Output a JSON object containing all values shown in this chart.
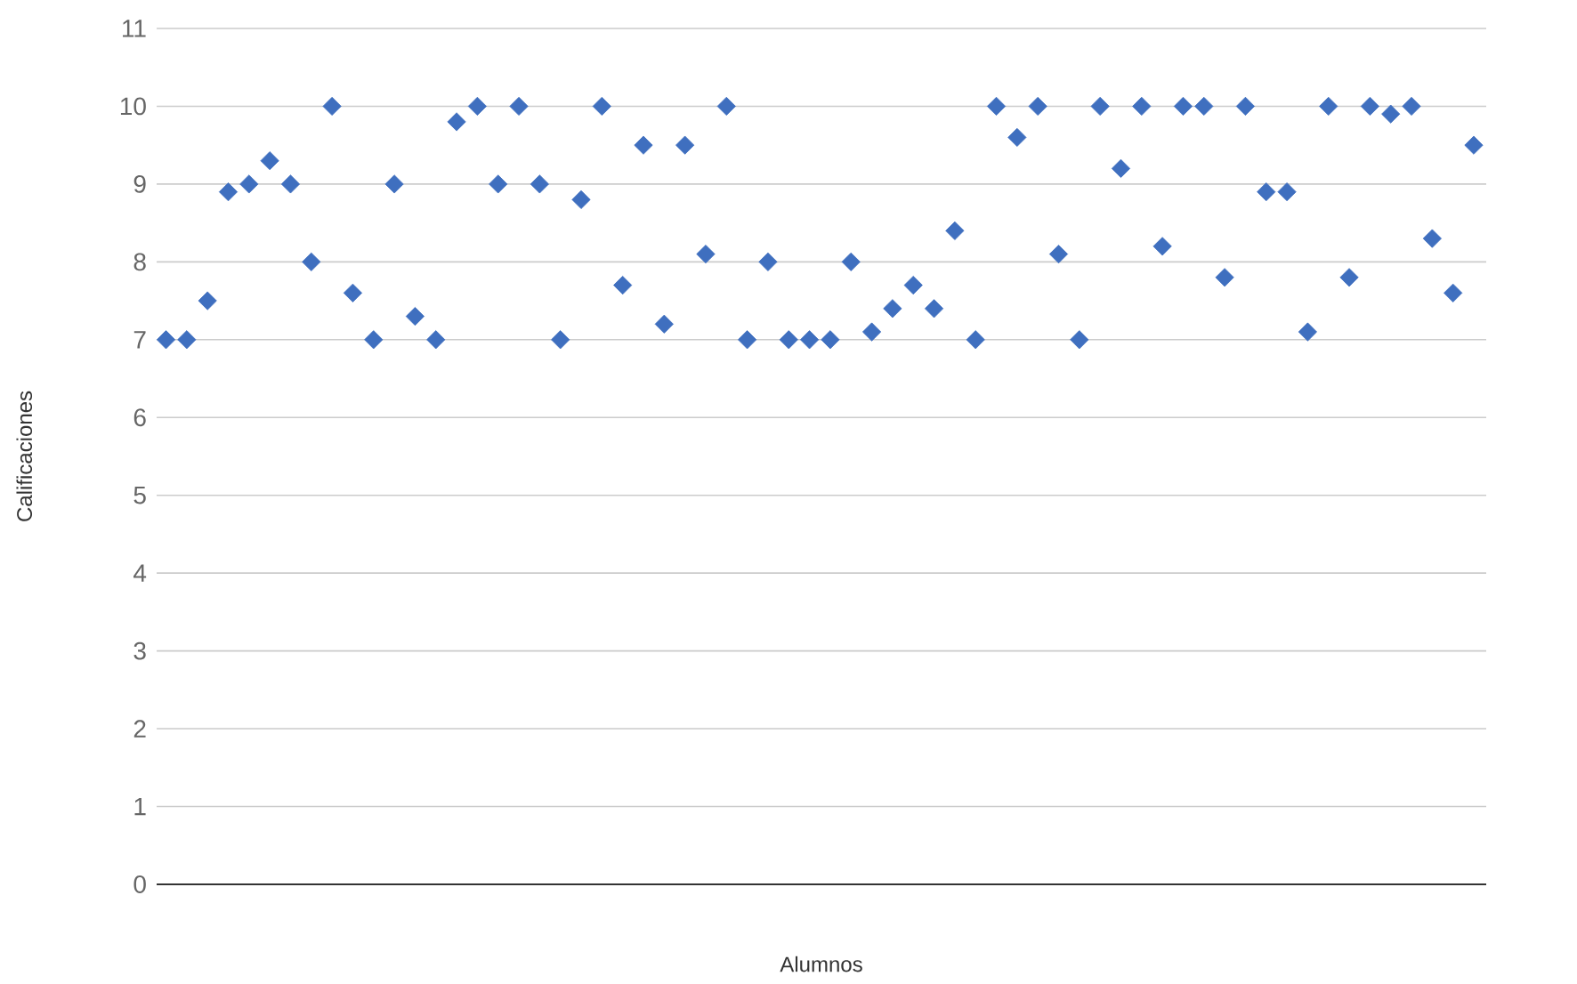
{
  "chart_data": {
    "type": "scatter",
    "xlabel": "Alumnos",
    "ylabel": "Calificaciones",
    "categories": [
      null,
      null,
      null,
      null,
      null,
      null,
      null,
      null,
      null,
      null,
      null,
      null,
      null,
      null,
      null,
      null,
      null,
      null,
      null,
      null,
      null,
      null,
      null,
      null,
      null,
      null,
      null,
      null,
      null,
      null,
      null,
      null,
      null,
      null,
      null,
      null,
      null,
      null,
      null,
      null,
      null,
      null,
      null,
      null,
      null,
      null,
      null,
      null,
      null,
      null,
      null,
      null,
      null,
      null,
      null,
      null,
      null,
      null,
      null,
      null,
      null,
      null,
      null,
      null
    ],
    "series": [
      {
        "color": "#3f6fbf",
        "values": [
          7,
          7,
          7.5,
          8.9,
          9,
          9.3,
          9,
          8,
          10,
          7.6,
          7,
          9,
          7.3,
          7,
          9.8,
          10,
          9,
          10,
          9,
          7,
          8.8,
          10,
          7.7,
          9.5,
          7.2,
          9.5,
          8.1,
          10,
          7,
          8,
          7,
          7,
          7,
          8,
          7.1,
          7.4,
          7.7,
          7.4,
          8.4,
          7,
          10,
          9.6,
          10,
          8.1,
          7,
          10,
          9.2,
          10,
          8.2,
          10,
          10,
          7.8,
          10,
          8.9,
          8.9,
          7.1,
          10,
          7.8,
          10,
          9.9,
          10,
          8.3,
          7.6,
          9.5
        ]
      }
    ],
    "ylim": [
      0,
      11
    ],
    "yticks": [
      0,
      1,
      2,
      3,
      4,
      5,
      6,
      7,
      8,
      9,
      10,
      11
    ],
    "grid": "y",
    "marker": "diamond"
  }
}
